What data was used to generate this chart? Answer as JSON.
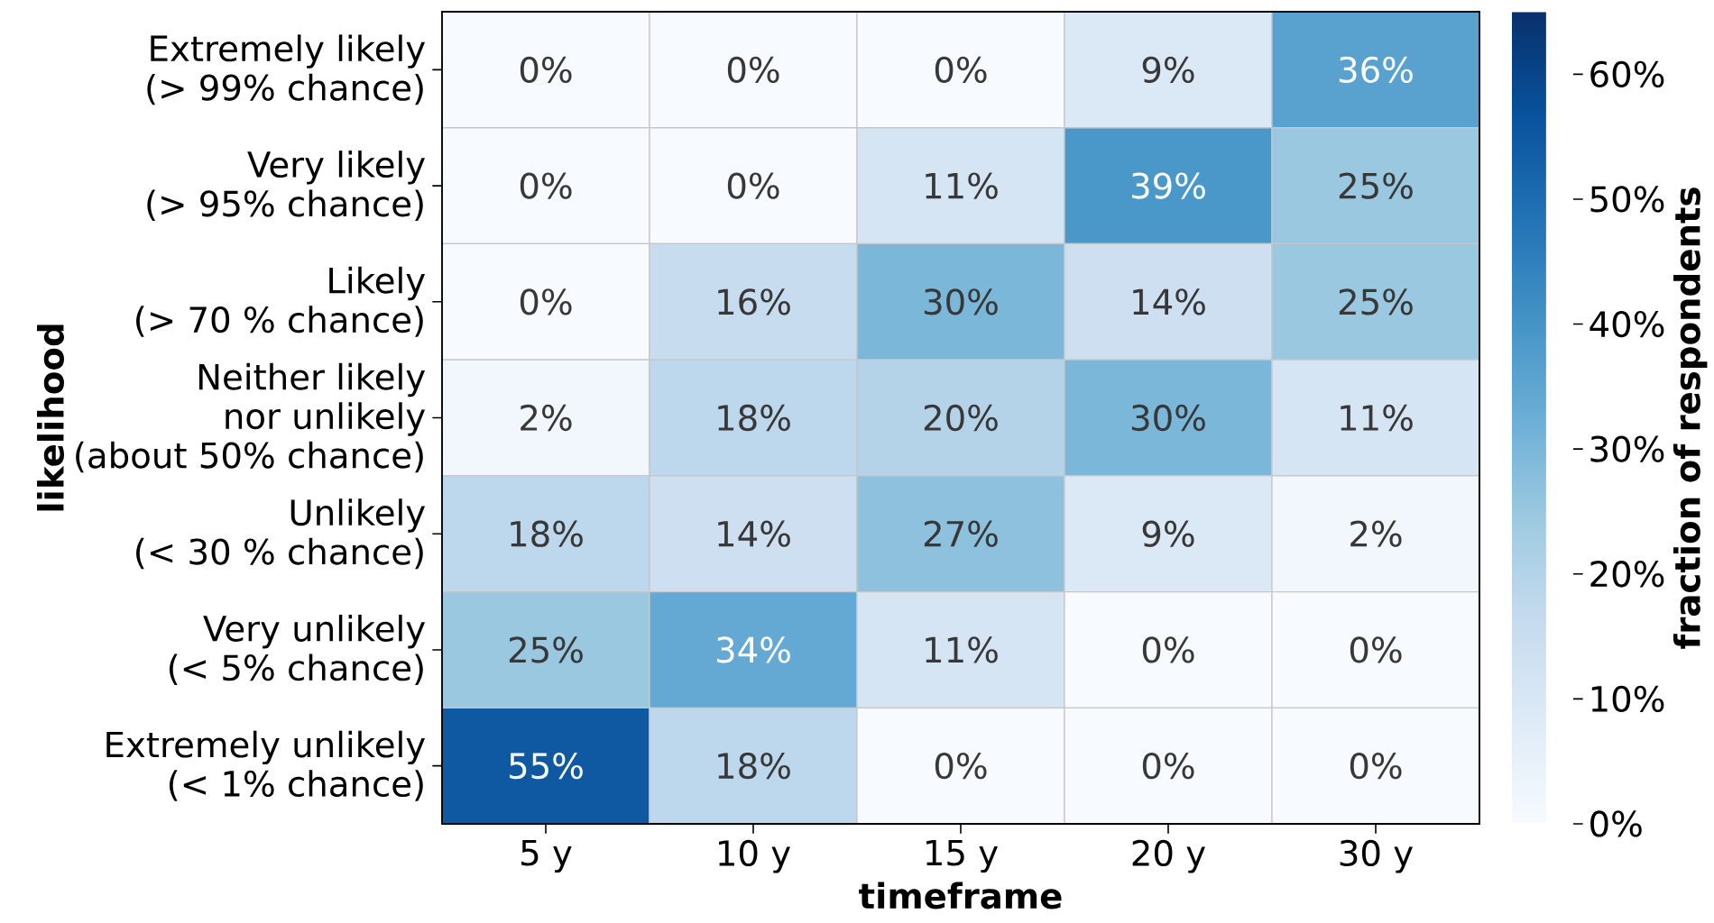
{
  "chart_data": {
    "type": "heatmap",
    "xlabel": "timeframe",
    "ylabel": "likelihood",
    "clabel": "fraction of respondents",
    "categories": [
      "5 y",
      "10 y",
      "15 y",
      "20 y",
      "30 y"
    ],
    "y_categories": [
      "Extremely likely\n(> 99% chance)",
      "Very likely\n(> 95% chance)",
      "Likely\n(> 70 % chance)",
      "Neither likely\nnor unlikely\n(about 50% chance)",
      "Unlikely\n(< 30 % chance)",
      "Very unlikely\n(< 5% chance)",
      "Extremely unlikely\n(< 1% chance)"
    ],
    "cells": [
      [
        0,
        0,
        0,
        9,
        36
      ],
      [
        0,
        0,
        11,
        39,
        25
      ],
      [
        0,
        16,
        30,
        14,
        25
      ],
      [
        2,
        18,
        20,
        30,
        11
      ],
      [
        18,
        14,
        27,
        9,
        2
      ],
      [
        25,
        34,
        11,
        0,
        0
      ],
      [
        55,
        18,
        0,
        0,
        0
      ]
    ],
    "cell_labels": [
      [
        "0%",
        "0%",
        "0%",
        "9%",
        "36%"
      ],
      [
        "0%",
        "0%",
        "11%",
        "39%",
        "25%"
      ],
      [
        "0%",
        "16%",
        "30%",
        "14%",
        "25%"
      ],
      [
        "2%",
        "18%",
        "20%",
        "30%",
        "11%"
      ],
      [
        "18%",
        "14%",
        "27%",
        "9%",
        "2%"
      ],
      [
        "25%",
        "34%",
        "11%",
        "0%",
        "0%"
      ],
      [
        "55%",
        "18%",
        "0%",
        "0%",
        "0%"
      ]
    ],
    "clim": [
      0,
      65
    ],
    "cticks": [
      {
        "value": 0,
        "label": "0%"
      },
      {
        "value": 10,
        "label": "10%"
      },
      {
        "value": 20,
        "label": "20%"
      },
      {
        "value": 30,
        "label": "30%"
      },
      {
        "value": 40,
        "label": "40%"
      },
      {
        "value": 50,
        "label": "50%"
      },
      {
        "value": 60,
        "label": "60%"
      }
    ]
  }
}
